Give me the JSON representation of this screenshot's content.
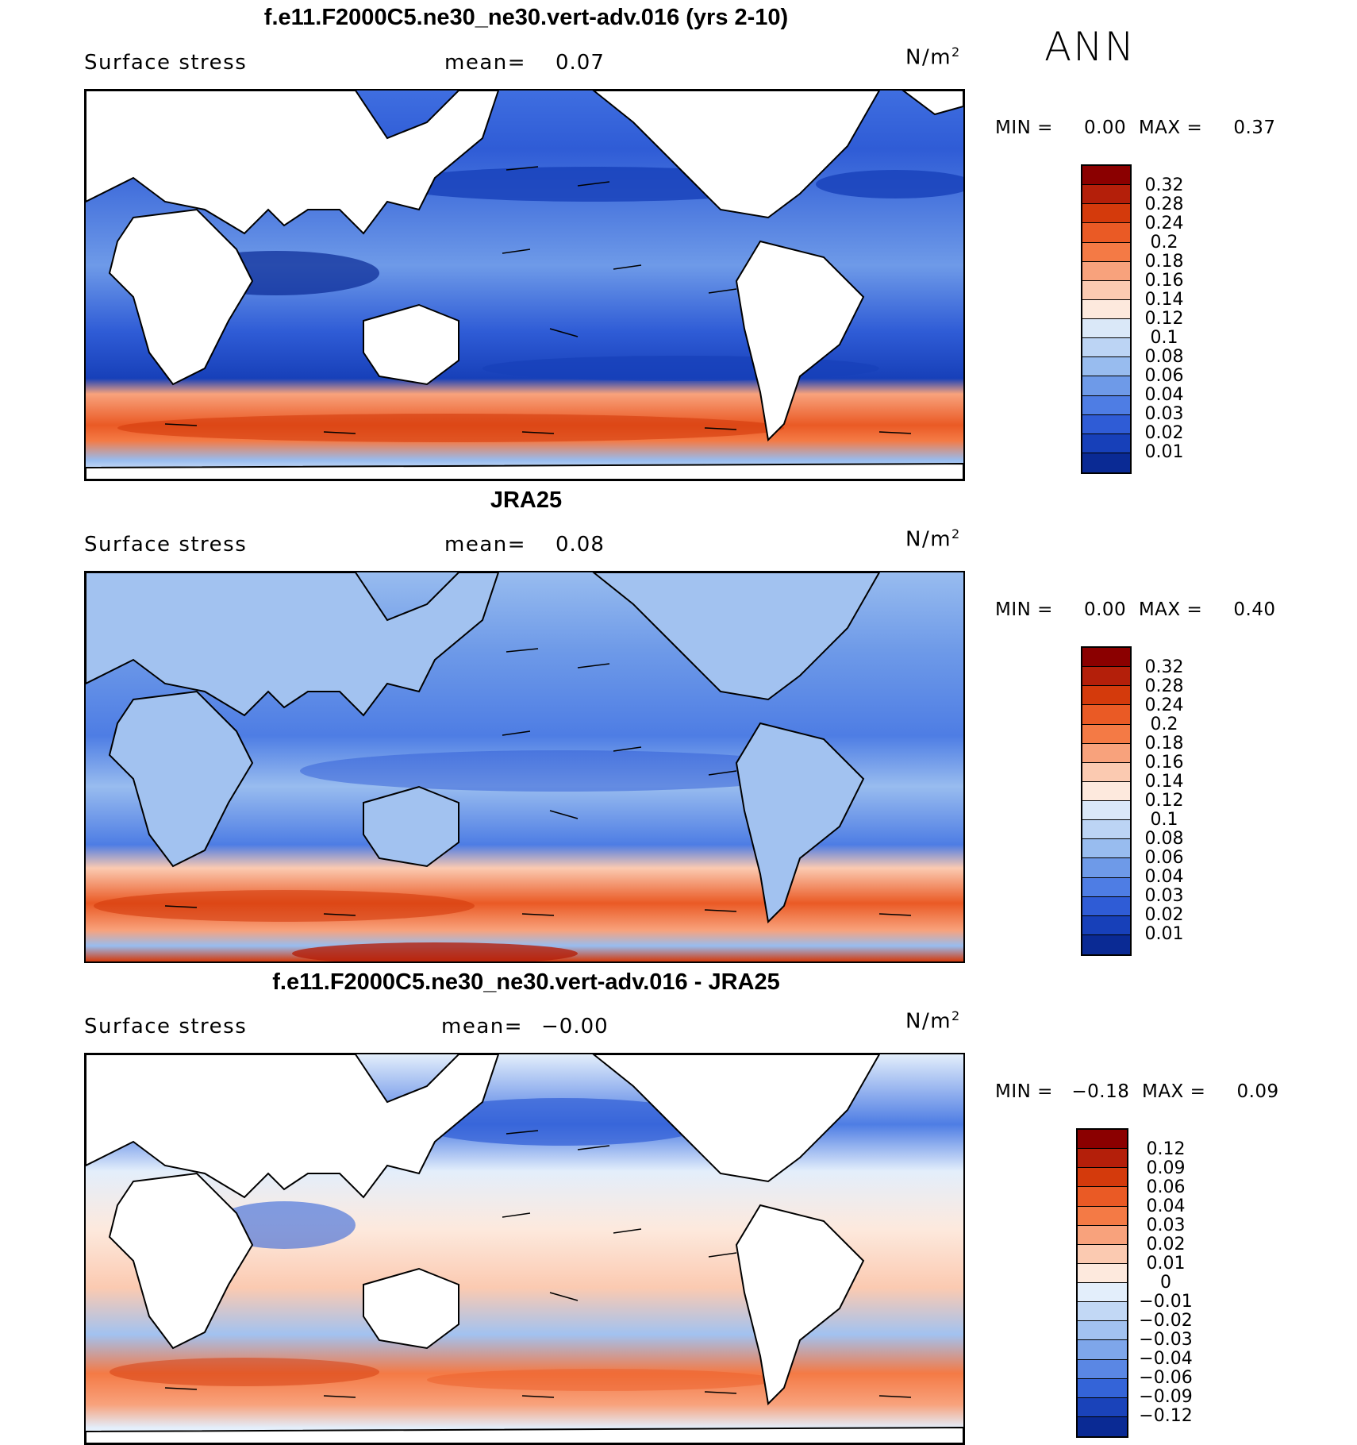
{
  "header": {
    "season": "ANN"
  },
  "panels": [
    {
      "title": "f.e11.F2000C5.ne30_ne30.vert-adv.016 (yrs 2-10)",
      "variable": "Surface stress",
      "mean_label": "mean=",
      "mean_value": "0.07",
      "units": "N/m",
      "units_exp": "2",
      "min_label": "MIN =",
      "min_value": "0.00",
      "max_label": "MAX =",
      "max_value": "0.37",
      "kind": "model",
      "colorbar": {
        "labels": [
          "0.32",
          "0.28",
          "0.24",
          "0.2",
          "0.18",
          "0.16",
          "0.14",
          "0.12",
          "0.1",
          "0.08",
          "0.06",
          "0.04",
          "0.03",
          "0.02",
          "0.01"
        ],
        "colors": [
          "#8b0000",
          "#b41f0a",
          "#d43a0c",
          "#ea5a25",
          "#f47a45",
          "#f8a27c",
          "#fbcab1",
          "#fde9dd",
          "#dae8f8",
          "#bcd4f4",
          "#98bcef",
          "#6e9ae8",
          "#4e7de4",
          "#2f5cd6",
          "#1740b9",
          "#0a2a94"
        ]
      },
      "chart_data": {
        "type": "heatmap",
        "title": "f.e11.F2000C5.ne30_ne30.vert-adv.016 (yrs 2-10)",
        "field": "Surface stress magnitude with wind-stress vectors",
        "units": "N/m2",
        "mean": 0.07,
        "min": 0.0,
        "max": 0.37,
        "levels": [
          0.01,
          0.02,
          0.03,
          0.04,
          0.06,
          0.08,
          0.1,
          0.12,
          0.14,
          0.16,
          0.18,
          0.2,
          0.24,
          0.28,
          0.32
        ]
      }
    },
    {
      "title": "JRA25",
      "variable": "Surface stress",
      "mean_label": "mean=",
      "mean_value": "0.08",
      "units": "N/m",
      "units_exp": "2",
      "min_label": "MIN =",
      "min_value": "0.00",
      "max_label": "MAX =",
      "max_value": "0.40",
      "kind": "obs",
      "colorbar": {
        "labels": [
          "0.32",
          "0.28",
          "0.24",
          "0.2",
          "0.18",
          "0.16",
          "0.14",
          "0.12",
          "0.1",
          "0.08",
          "0.06",
          "0.04",
          "0.03",
          "0.02",
          "0.01"
        ],
        "colors": [
          "#8b0000",
          "#b41f0a",
          "#d43a0c",
          "#ea5a25",
          "#f47a45",
          "#f8a27c",
          "#fbcab1",
          "#fde9dd",
          "#dae8f8",
          "#bcd4f4",
          "#98bcef",
          "#6e9ae8",
          "#4e7de4",
          "#2f5cd6",
          "#1740b9",
          "#0a2a94"
        ]
      },
      "chart_data": {
        "type": "heatmap",
        "title": "JRA25",
        "field": "Surface stress magnitude with wind-stress vectors",
        "units": "N/m2",
        "mean": 0.08,
        "min": 0.0,
        "max": 0.4,
        "levels": [
          0.01,
          0.02,
          0.03,
          0.04,
          0.06,
          0.08,
          0.1,
          0.12,
          0.14,
          0.16,
          0.18,
          0.2,
          0.24,
          0.28,
          0.32
        ]
      }
    },
    {
      "title": "f.e11.F2000C5.ne30_ne30.vert-adv.016 - JRA25",
      "variable": "Surface stress",
      "mean_label": "mean=",
      "mean_value": "−0.00",
      "units": "N/m",
      "units_exp": "2",
      "min_label": "MIN =",
      "min_value": "−0.18",
      "max_label": "MAX =",
      "max_value": "0.09",
      "kind": "diff",
      "colorbar": {
        "labels": [
          "0.12",
          "0.09",
          "0.06",
          "0.04",
          "0.03",
          "0.02",
          "0.01",
          "0",
          "−0.01",
          "−0.02",
          "−0.03",
          "−0.04",
          "−0.06",
          "−0.09",
          "−0.12"
        ],
        "colors": [
          "#8b0000",
          "#b41f0a",
          "#d43a0c",
          "#ea5a25",
          "#f47a45",
          "#f8a27c",
          "#fbcab1",
          "#fde9dd",
          "#e3eefb",
          "#c2d8f5",
          "#a2c2f0",
          "#7ea6ea",
          "#5a87e4",
          "#3464d8",
          "#1a43ba",
          "#0a2a94"
        ]
      },
      "chart_data": {
        "type": "heatmap",
        "title": "f.e11.F2000C5.ne30_ne30.vert-adv.016 - JRA25",
        "field": "Surface stress difference with wind-stress vectors",
        "units": "N/m2",
        "mean": -0.0,
        "min": -0.18,
        "max": 0.09,
        "levels": [
          -0.12,
          -0.09,
          -0.06,
          -0.04,
          -0.03,
          -0.02,
          -0.01,
          0,
          0.01,
          0.02,
          0.03,
          0.04,
          0.06,
          0.09,
          0.12
        ]
      }
    }
  ]
}
